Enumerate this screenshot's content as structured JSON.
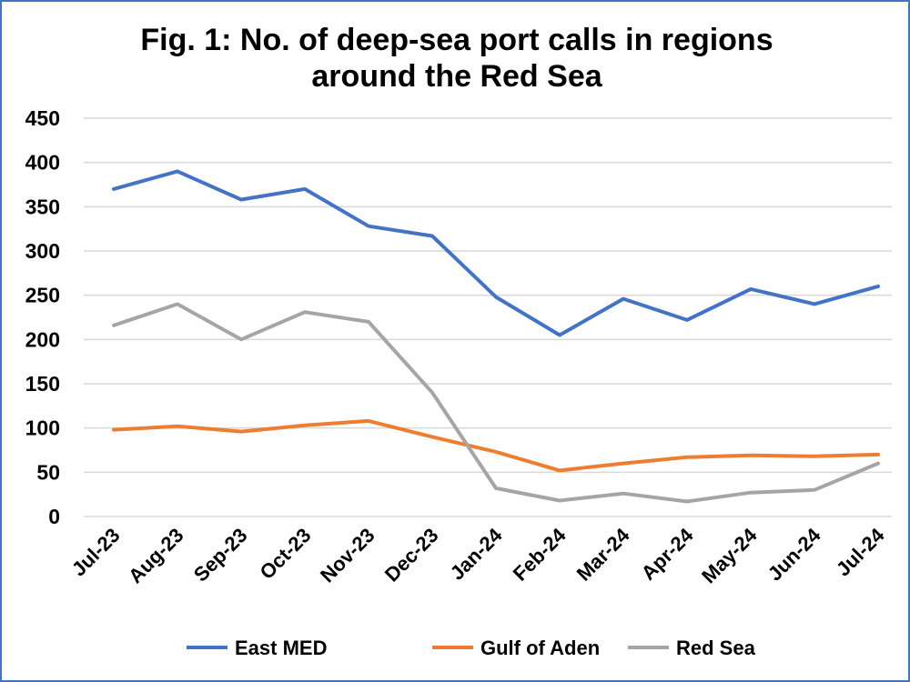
{
  "chart_data": {
    "type": "line",
    "title_line1": "Fig. 1: No. of deep-sea port calls in regions",
    "title_line2": "around the Red Sea",
    "xlabel": "",
    "ylabel": "",
    "ylim": [
      0,
      450
    ],
    "yticks": [
      "0",
      "50",
      "100",
      "150",
      "200",
      "250",
      "300",
      "350",
      "400",
      "450"
    ],
    "categories": [
      "Jul-23",
      "Aug-23",
      "Sep-23",
      "Oct-23",
      "Nov-23",
      "Dec-23",
      "Jan-24",
      "Feb-24",
      "Mar-24",
      "Apr-24",
      "May-24",
      "Jun-24",
      "Jul-24"
    ],
    "grid": true,
    "legend_position": "bottom",
    "series": [
      {
        "name": "East MED",
        "color": "#4472c4",
        "values": [
          370,
          390,
          358,
          370,
          328,
          317,
          248,
          205,
          246,
          222,
          257,
          240,
          260
        ]
      },
      {
        "name": "Gulf of Aden",
        "color": "#ed7d31",
        "values": [
          98,
          102,
          96,
          103,
          108,
          90,
          73,
          52,
          60,
          67,
          69,
          68,
          70
        ]
      },
      {
        "name": "Red Sea",
        "color": "#a5a5a5",
        "values": [
          216,
          240,
          200,
          231,
          220,
          140,
          32,
          18,
          26,
          17,
          27,
          30,
          60
        ]
      }
    ]
  }
}
